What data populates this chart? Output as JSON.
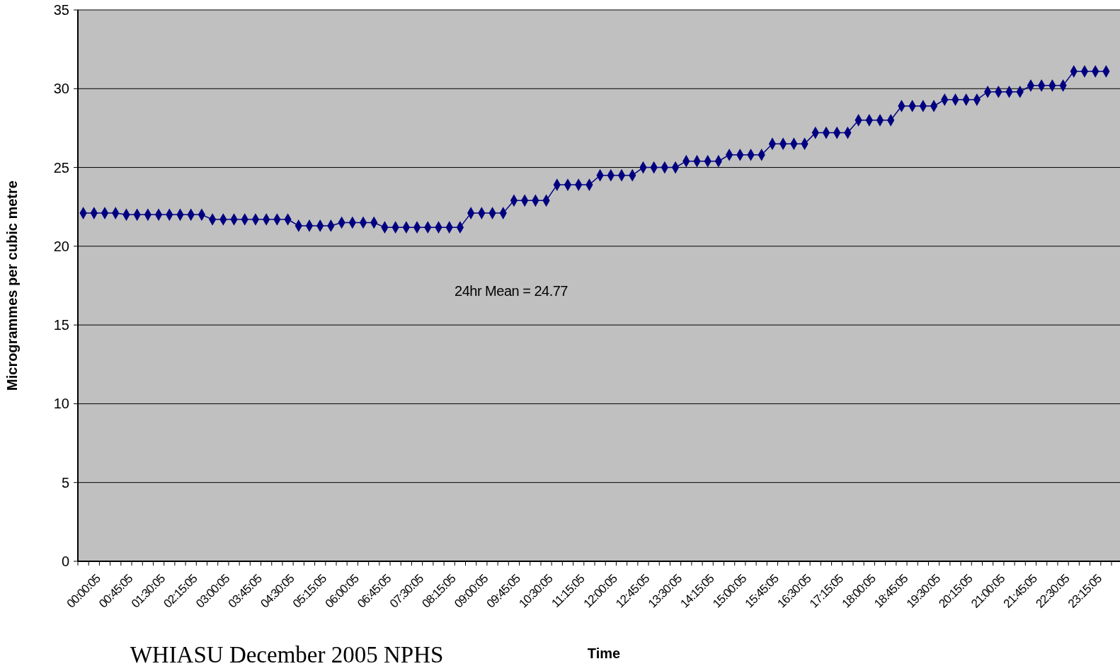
{
  "chart_data": {
    "type": "line",
    "xlabel": "Time",
    "ylabel": "Microgrammes per cubic metre",
    "categories": [
      "00:00:05",
      null,
      null,
      "00:45:05",
      null,
      null,
      "01:30:05",
      null,
      null,
      "02:15:05",
      null,
      null,
      "03:00:05",
      null,
      null,
      "03:45:05",
      null,
      null,
      "04:30:05",
      null,
      null,
      "05:15:05",
      null,
      null,
      "06:00:05",
      null,
      null,
      "06:45:05",
      null,
      null,
      "07:30:05",
      null,
      null,
      "08:15:05",
      null,
      null,
      "09:00:05",
      null,
      null,
      "09:45:05",
      null,
      null,
      "10:30:05",
      null,
      null,
      "11:15:05",
      null,
      null,
      "12:00:05",
      null,
      null,
      "12:45:05",
      null,
      null,
      "13:30:05",
      null,
      null,
      "14:15:05",
      null,
      null,
      "15:00:05",
      null,
      null,
      "15:45:05",
      null,
      null,
      "16:30:05",
      null,
      null,
      "17:15:05",
      null,
      null,
      "18:00:05",
      null,
      null,
      "18:45:05",
      null,
      null,
      "19:30:05",
      null,
      null,
      "20:15:05",
      null,
      null,
      "21:00:05",
      null,
      null,
      "21:45:05",
      null,
      null,
      "22:30:05",
      null,
      null,
      "23:15:05",
      null,
      null
    ],
    "series": [
      {
        "color": "#000080",
        "values": [
          22.1,
          22.1,
          22.1,
          22.1,
          22.0,
          22.0,
          22.0,
          22.0,
          22.0,
          22.0,
          22.0,
          22.0,
          21.7,
          21.7,
          21.7,
          21.7,
          21.7,
          21.7,
          21.7,
          21.7,
          21.3,
          21.3,
          21.3,
          21.3,
          21.5,
          21.5,
          21.5,
          21.5,
          21.2,
          21.2,
          21.2,
          21.2,
          21.2,
          21.2,
          21.2,
          21.2,
          22.1,
          22.1,
          22.1,
          22.1,
          22.9,
          22.9,
          22.9,
          22.9,
          23.9,
          23.9,
          23.9,
          23.9,
          24.5,
          24.5,
          24.5,
          24.5,
          25.0,
          25.0,
          25.0,
          25.0,
          25.4,
          25.4,
          25.4,
          25.4,
          25.8,
          25.8,
          25.8,
          25.8,
          26.5,
          26.5,
          26.5,
          26.5,
          27.2,
          27.2,
          27.2,
          27.2,
          28.0,
          28.0,
          28.0,
          28.0,
          28.9,
          28.9,
          28.9,
          28.9,
          29.3,
          29.3,
          29.3,
          29.3,
          29.8,
          29.8,
          29.8,
          29.8,
          30.2,
          30.2,
          30.2,
          30.2,
          31.1,
          31.1,
          31.1,
          31.1
        ]
      }
    ],
    "ylim": [
      0,
      35
    ],
    "yticks": [
      0,
      5,
      10,
      15,
      20,
      25,
      30,
      35
    ],
    "grid": "y",
    "marker": "diamond",
    "line_style": "solid",
    "annotations": [
      "24hr Mean = 24.77",
      "WHIASU December 2005 NPHS"
    ]
  }
}
